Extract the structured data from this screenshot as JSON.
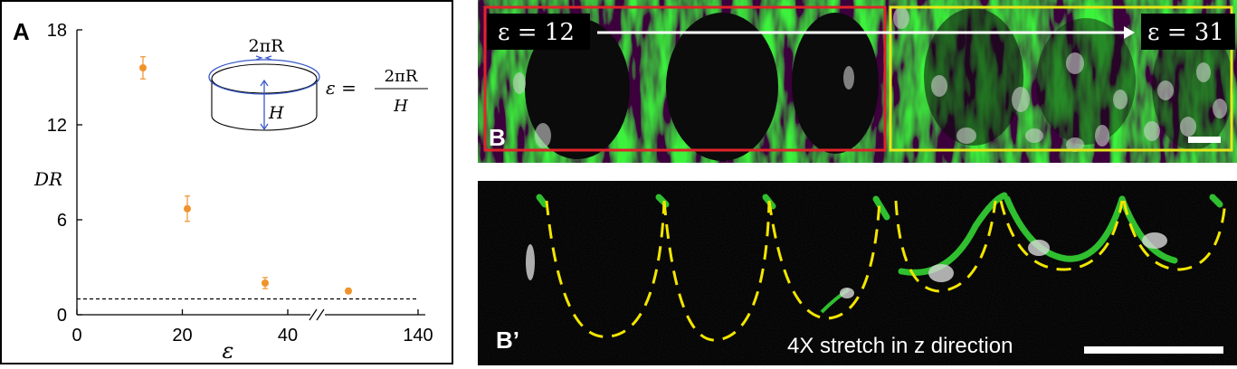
{
  "panel_a": {
    "letter": "A",
    "eq_circumference": "2πR",
    "eq_height": "H",
    "eq_lhs": "ε =",
    "eq_numerator": "2πR",
    "eq_denominator": "H",
    "chart_data": {
      "type": "scatter",
      "title": "",
      "xlabel": "ε",
      "ylabel": "DR",
      "x_ticks": [
        "0",
        "20",
        "40",
        "140"
      ],
      "y_ticks": [
        "0",
        "6",
        "12",
        "18"
      ],
      "ylim": [
        0,
        18
      ],
      "x_axis_break": true,
      "x_axis_break_between": [
        40,
        140
      ],
      "reference_line": {
        "y": 1,
        "style": "dashed"
      },
      "point_color": "#f0932b",
      "points": [
        {
          "x": 12,
          "y": 15.6,
          "err": 0.7
        },
        {
          "x": 21,
          "y": 6.7,
          "err": 0.8
        },
        {
          "x": 36,
          "y": 2.0,
          "err": 0.35
        },
        {
          "x": 60,
          "y": 1.5,
          "err": 0.15
        }
      ]
    }
  },
  "panel_b": {
    "letter": "B",
    "label_left": "ε = 12",
    "label_right": "ε = 31",
    "box_left_color": "#e0242a",
    "box_right_color": "#e8e619"
  },
  "panel_b2": {
    "letter": "B’",
    "caption": "4X stretch in z direction",
    "outline_color": "#f2e600"
  }
}
